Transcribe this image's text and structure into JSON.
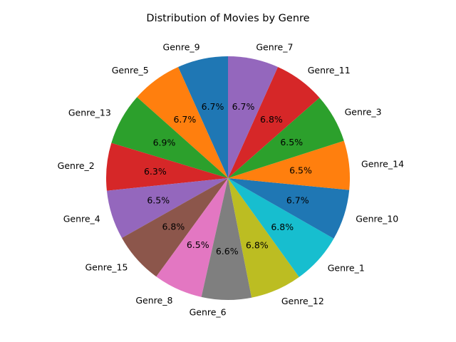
{
  "chart_data": {
    "type": "pie",
    "title": "Distribution of Movies by Genre",
    "start_angle_deg": 90,
    "direction": "counterclockwise",
    "labels": [
      "Genre_9",
      "Genre_5",
      "Genre_13",
      "Genre_2",
      "Genre_4",
      "Genre_15",
      "Genre_8",
      "Genre_6",
      "Genre_12",
      "Genre_1",
      "Genre_10",
      "Genre_14",
      "Genre_3",
      "Genre_11",
      "Genre_7"
    ],
    "values": [
      6.7,
      6.7,
      6.9,
      6.3,
      6.5,
      6.8,
      6.5,
      6.6,
      6.8,
      6.8,
      6.7,
      6.5,
      6.5,
      6.8,
      6.7
    ],
    "value_labels": [
      "6.7%",
      "6.7%",
      "6.9%",
      "6.3%",
      "6.5%",
      "6.8%",
      "6.5%",
      "6.6%",
      "6.8%",
      "6.8%",
      "6.7%",
      "6.5%",
      "6.5%",
      "6.8%",
      "6.7%"
    ],
    "colors": [
      "#1f77b4",
      "#ff7f0e",
      "#2ca02c",
      "#d62728",
      "#9467bd",
      "#8c564b",
      "#e377c2",
      "#7f7f7f",
      "#bcbd22",
      "#17becf",
      "#1f77b4",
      "#ff7f0e",
      "#2ca02c",
      "#d62728",
      "#9467bd"
    ]
  }
}
